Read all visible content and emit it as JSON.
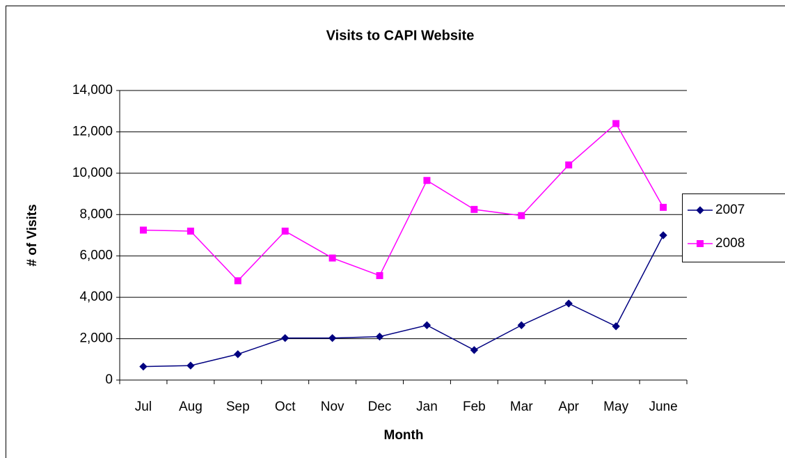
{
  "chart_data": {
    "type": "line",
    "title": "Visits to CAPI Website",
    "x_label": "Month",
    "y_label": "# of Visits",
    "categories": [
      "Jul",
      "Aug",
      "Sep",
      "Oct",
      "Nov",
      "Dec",
      "Jan",
      "Feb",
      "Mar",
      "Apr",
      "May",
      "June"
    ],
    "series": [
      {
        "name": "2007",
        "color": "#000080",
        "marker": "diamond",
        "values": [
          650,
          700,
          1250,
          2030,
          2030,
          2100,
          2650,
          1450,
          2650,
          3700,
          2600,
          7000
        ]
      },
      {
        "name": "2008",
        "color": "#ff00ff",
        "marker": "square",
        "values": [
          7250,
          7200,
          4800,
          7200,
          5900,
          5050,
          9650,
          8250,
          7950,
          10400,
          12400,
          8350
        ]
      }
    ],
    "ylim": [
      0,
      14000
    ],
    "yticks": [
      0,
      {
        "value": 2000,
        "label": "2,000"
      },
      {
        "value": 4000,
        "label": "4,000"
      },
      {
        "value": 6000,
        "label": "6,000"
      },
      {
        "value": 8000,
        "label": "8,000"
      },
      {
        "value": 10000,
        "label": "10,000"
      },
      {
        "value": 12000,
        "label": "12,000"
      },
      {
        "value": 14000,
        "label": "14,000"
      }
    ],
    "grid": true,
    "legend": "right"
  }
}
